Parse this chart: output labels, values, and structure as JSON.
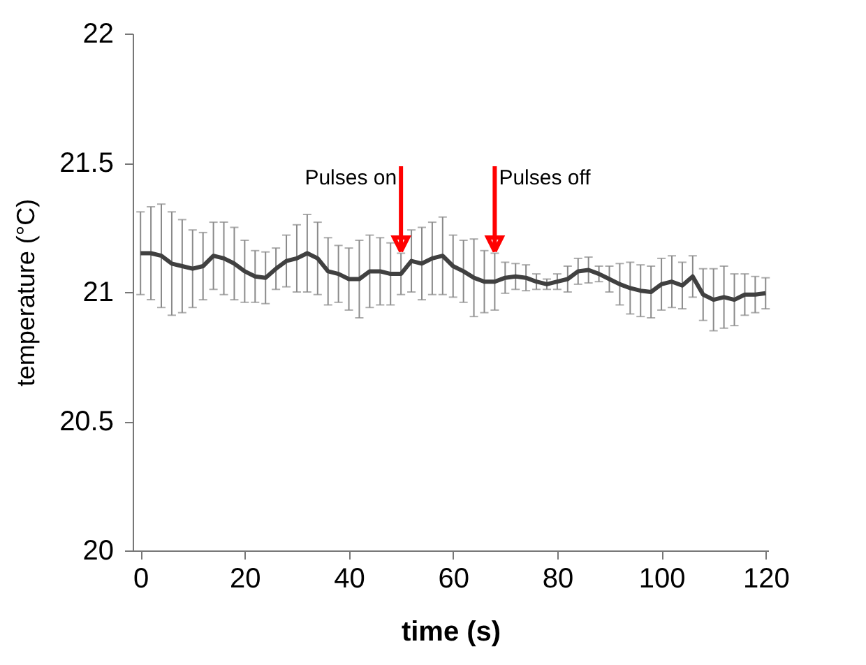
{
  "chart_data": {
    "type": "line",
    "xlabel": "time (s)",
    "ylabel": "temperature (°C)",
    "x": [
      0,
      2,
      4,
      6,
      8,
      10,
      12,
      14,
      16,
      18,
      20,
      22,
      24,
      26,
      28,
      30,
      32,
      34,
      36,
      38,
      40,
      42,
      44,
      46,
      48,
      50,
      52,
      54,
      56,
      58,
      60,
      62,
      64,
      66,
      68,
      70,
      72,
      74,
      76,
      78,
      80,
      82,
      84,
      86,
      88,
      90,
      92,
      94,
      96,
      98,
      100,
      102,
      104,
      106,
      108,
      110,
      112,
      114,
      116,
      118,
      120
    ],
    "series": [
      {
        "color": "#404040",
        "values": [
          21.15,
          21.15,
          21.14,
          21.11,
          21.1,
          21.09,
          21.1,
          21.14,
          21.13,
          21.11,
          21.08,
          21.06,
          21.055,
          21.09,
          21.12,
          21.13,
          21.15,
          21.13,
          21.08,
          21.07,
          21.05,
          21.05,
          21.08,
          21.08,
          21.07,
          21.07,
          21.12,
          21.11,
          21.13,
          21.14,
          21.1,
          21.08,
          21.055,
          21.04,
          21.04,
          21.055,
          21.06,
          21.055,
          21.04,
          21.03,
          21.04,
          21.05,
          21.08,
          21.085,
          21.07,
          21.05,
          21.03,
          21.015,
          21.005,
          21.0,
          21.03,
          21.04,
          21.025,
          21.06,
          20.99,
          20.97,
          20.98,
          20.97,
          20.99,
          20.99,
          20.995
        ],
        "errors": [
          0.16,
          0.18,
          0.2,
          0.2,
          0.18,
          0.15,
          0.13,
          0.13,
          0.14,
          0.14,
          0.12,
          0.1,
          0.1,
          0.08,
          0.1,
          0.13,
          0.15,
          0.14,
          0.13,
          0.11,
          0.12,
          0.15,
          0.14,
          0.13,
          0.12,
          0.08,
          0.12,
          0.14,
          0.14,
          0.15,
          0.12,
          0.12,
          0.15,
          0.12,
          0.11,
          0.06,
          0.05,
          0.05,
          0.03,
          0.02,
          0.03,
          0.05,
          0.05,
          0.05,
          0.03,
          0.05,
          0.08,
          0.1,
          0.1,
          0.1,
          0.1,
          0.1,
          0.09,
          0.08,
          0.1,
          0.12,
          0.12,
          0.1,
          0.08,
          0.07,
          0.06
        ]
      }
    ],
    "xlim": [
      -1.5,
      120.5
    ],
    "xticks": [
      0,
      20,
      40,
      60,
      80,
      100,
      120
    ],
    "ylim": [
      20,
      22
    ],
    "yticks": [
      20,
      20.5,
      21,
      21.5,
      22
    ],
    "ref_lines": [
      {
        "axis": "x",
        "value": 50,
        "label": "Pulses on",
        "color": "#ff0000"
      },
      {
        "axis": "x",
        "value": 68,
        "label": "Pulses off",
        "color": "#ff0000"
      }
    ],
    "grid": false
  }
}
